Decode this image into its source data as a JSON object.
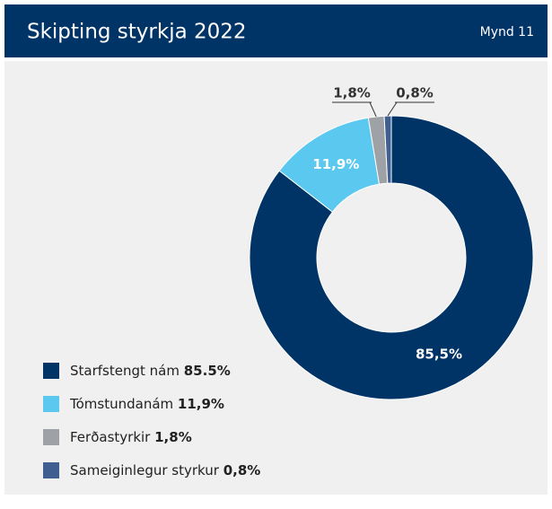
{
  "chart_data": {
    "type": "donut",
    "title": "Skipting styrkja 2022",
    "figure_label": "Mynd 11",
    "categories": [
      "Starfstengt nám",
      "Tómstundanám",
      "Ferðastyrkir",
      "Sameiginlegur styrkur"
    ],
    "values": [
      85.5,
      11.9,
      1.8,
      0.8
    ],
    "value_labels": [
      "85,5%",
      "11,9%",
      "1,8%",
      "0,8%"
    ],
    "legend_value_labels": [
      "85.5%",
      "11,9%",
      "1,8%",
      "0,8%"
    ],
    "colors": [
      "#003366",
      "#5bc8ef",
      "#9ea2a6",
      "#3f5f91"
    ]
  }
}
